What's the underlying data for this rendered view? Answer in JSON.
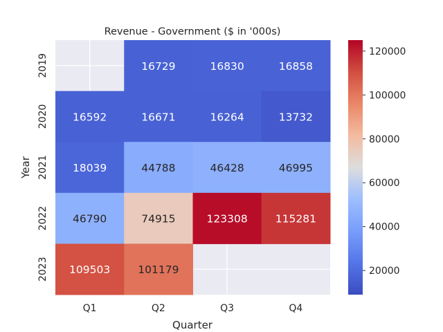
{
  "chart_data": {
    "type": "heatmap",
    "title": "Revenue - Government ($ in '000s)",
    "xlabel": "Quarter",
    "ylabel": "Year",
    "x_categories": [
      "Q1",
      "Q2",
      "Q3",
      "Q4"
    ],
    "y_categories": [
      "2019",
      "2020",
      "2021",
      "2022",
      "2023"
    ],
    "values": [
      [
        null,
        16729,
        16830,
        16858
      ],
      [
        16592,
        16671,
        16264,
        13732
      ],
      [
        18039,
        44788,
        46428,
        46995
      ],
      [
        46790,
        74915,
        123308,
        115281
      ],
      [
        109503,
        101179,
        null,
        null
      ]
    ],
    "colormap": "coolwarm",
    "colorbar": {
      "range": [
        9000,
        125000
      ],
      "ticks": [
        20000,
        40000,
        60000,
        80000,
        100000,
        120000
      ],
      "tick_labels": [
        "20000",
        "40000",
        "60000",
        "80000",
        "100000",
        "120000"
      ]
    },
    "missing_color": "#eaeaf2",
    "grid": true
  }
}
